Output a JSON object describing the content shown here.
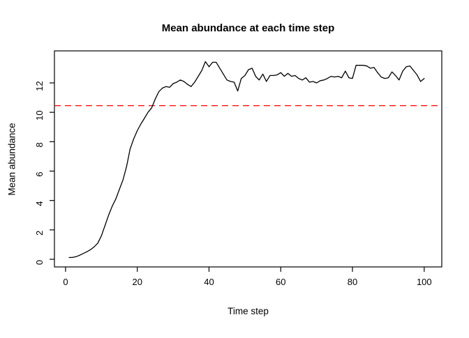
{
  "chart_data": {
    "type": "line",
    "title": "Mean abundance at each time step",
    "xlabel": "Time step",
    "ylabel": "Mean abundance",
    "grid": false,
    "legend": "none",
    "x_ticks": [
      0,
      20,
      40,
      60,
      80,
      100
    ],
    "y_ticks": [
      0,
      2,
      4,
      6,
      8,
      10,
      12
    ],
    "xlim": [
      -3.1,
      104.9
    ],
    "ylim": [
      -0.52,
      14.18
    ],
    "x_start": 1,
    "x_step": 1,
    "series_name": "mean-abundance",
    "series_color": "#000000",
    "threshold_line": {
      "value": 10.45,
      "color": "#ff0000",
      "style": "dashed"
    },
    "values": [
      0.12,
      0.13,
      0.18,
      0.28,
      0.4,
      0.52,
      0.66,
      0.85,
      1.1,
      1.6,
      2.3,
      3.0,
      3.6,
      4.1,
      4.75,
      5.4,
      6.3,
      7.5,
      8.2,
      8.75,
      9.2,
      9.6,
      10.0,
      10.3,
      10.9,
      11.4,
      11.65,
      11.75,
      11.7,
      11.95,
      12.05,
      12.2,
      12.1,
      11.9,
      11.75,
      12.05,
      12.45,
      12.85,
      13.45,
      13.1,
      13.4,
      13.4,
      13.0,
      12.6,
      12.2,
      12.1,
      12.05,
      11.45,
      12.3,
      12.5,
      12.9,
      13.0,
      12.45,
      12.2,
      12.6,
      12.1,
      12.5,
      12.5,
      12.55,
      12.7,
      12.45,
      12.65,
      12.45,
      12.5,
      12.3,
      12.2,
      12.35,
      12.05,
      12.1,
      12.0,
      12.15,
      12.2,
      12.3,
      12.45,
      12.4,
      12.45,
      12.35,
      12.8,
      12.35,
      12.3,
      13.2,
      13.2,
      13.2,
      13.15,
      13.0,
      13.05,
      12.7,
      12.4,
      12.3,
      12.35,
      12.75,
      12.5,
      12.2,
      12.8,
      13.1,
      13.15,
      12.85,
      12.55,
      12.1,
      12.3
    ]
  }
}
